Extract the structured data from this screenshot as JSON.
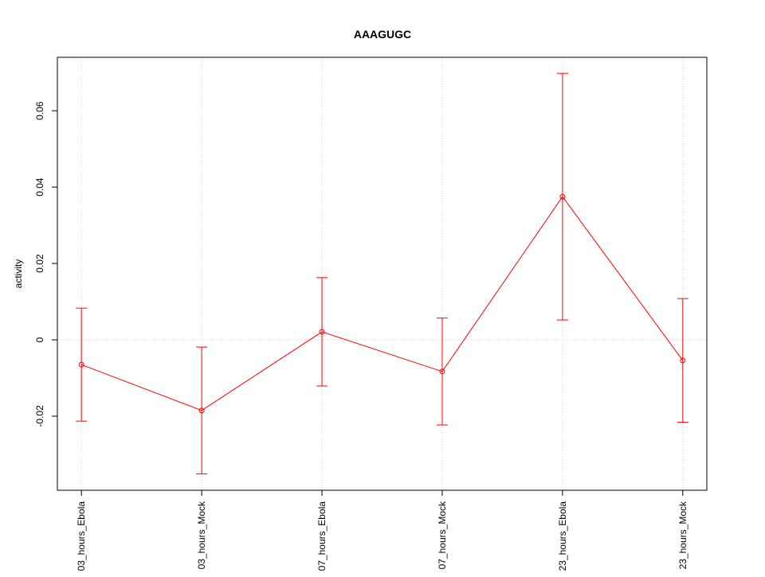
{
  "chart_data": {
    "type": "line",
    "title": "AAAGUGC",
    "y_label": "activity",
    "categories": [
      "03_hours_Ebola",
      "03_hours_Mock",
      "07_hours_Ebola",
      "07_hours_Mock",
      "23_hours_Ebola",
      "23_hours_Mock"
    ],
    "series": [
      {
        "color": "#ff0000",
        "values": [
          -0.0065,
          -0.0185,
          0.0021,
          -0.0083,
          0.0375,
          -0.0054
        ],
        "errors": [
          0.0148,
          0.0166,
          0.0142,
          0.014,
          0.0323,
          0.0162
        ]
      }
    ],
    "ylim": [
      -0.0394,
      0.074
    ],
    "yticks": [
      -0.02,
      0.0,
      0.02,
      0.04,
      0.06
    ],
    "grid": true,
    "reference_line": 0
  }
}
